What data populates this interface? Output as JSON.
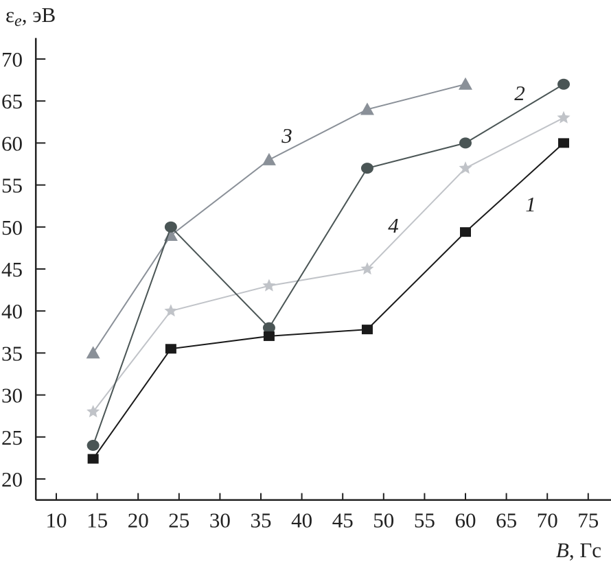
{
  "chart_data": {
    "type": "line",
    "title": "",
    "ylabel": "εe, эВ",
    "ylabel_main": "ε",
    "ylabel_sub": "e",
    "ylabel_unit": ", эВ",
    "xlabel": "B, Гс",
    "xlabel_main": "B",
    "xlabel_unit": ", Гс",
    "xlim": [
      7.5,
      78
    ],
    "ylim": [
      17.5,
      72.5
    ],
    "xticks": [
      10,
      15,
      20,
      25,
      30,
      35,
      40,
      45,
      50,
      55,
      60,
      65,
      70,
      75
    ],
    "yticks": [
      20,
      25,
      30,
      35,
      40,
      45,
      50,
      55,
      60,
      65,
      70
    ],
    "grid": false,
    "series": [
      {
        "name": "1",
        "marker": "square",
        "color": "#1a1a1a",
        "x": [
          14.5,
          24,
          36,
          48,
          60,
          72
        ],
        "y": [
          22.4,
          35.5,
          37,
          37.8,
          49.4,
          60
        ]
      },
      {
        "name": "2",
        "marker": "circle",
        "color": "#4a5555",
        "x": [
          14.5,
          24,
          36,
          48,
          60,
          72
        ],
        "y": [
          24,
          50,
          38,
          57,
          60,
          67
        ]
      },
      {
        "name": "3",
        "marker": "triangle",
        "color": "#8a9098",
        "x": [
          14.5,
          24,
          36,
          48,
          60
        ],
        "y": [
          35,
          49,
          58,
          64,
          67
        ]
      },
      {
        "name": "4",
        "marker": "star",
        "color": "#c0c3c8",
        "x": [
          14.5,
          24,
          36,
          48,
          60,
          72
        ],
        "y": [
          28,
          40,
          43,
          45,
          57,
          63
        ]
      }
    ]
  }
}
